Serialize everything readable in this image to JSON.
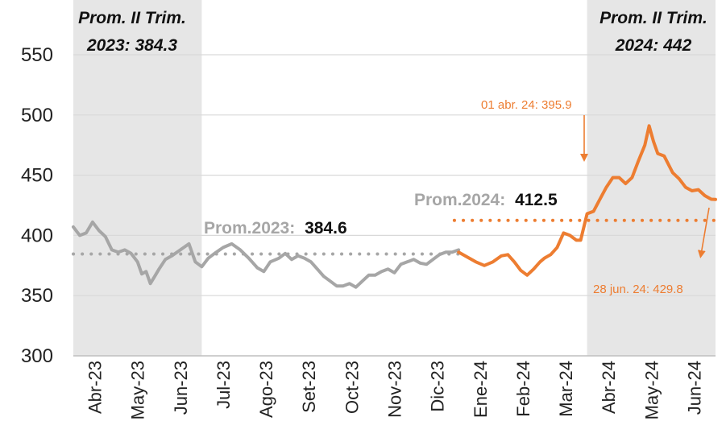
{
  "chart_data": {
    "type": "line",
    "title": "",
    "xlabel": "",
    "ylabel": "",
    "ylim": [
      300,
      550
    ],
    "yticks": [
      300,
      350,
      400,
      450,
      500,
      550
    ],
    "xticks": [
      "Abr-23",
      "May-23",
      "Jun-23",
      "Jul-23",
      "Ago-23",
      "Set-23",
      "Oct-23",
      "Nov-23",
      "Dic-23",
      "Ene-24",
      "Feb-24",
      "Mar-24",
      "Abr-24",
      "May-24",
      "Jun-24"
    ],
    "x_range": [
      0,
      15
    ],
    "grid": true,
    "colors": {
      "series_2023": "#a6a6a6",
      "series_2024": "#ed7d31",
      "shade": "#e6e6e6",
      "grid": "#d9d9d9",
      "dark_text": "#111111"
    },
    "shaded_periods": [
      {
        "from": 0,
        "to": 3,
        "line1": "Prom. II Trim.",
        "line2": "2023: 384.3"
      },
      {
        "from": 12,
        "to": 15,
        "line1": "Prom. II Trim.",
        "line2": "2024: 442"
      }
    ],
    "averages": [
      {
        "label": "Prom.2023:",
        "value_text": "384.6",
        "value": 384.6,
        "from": 0,
        "to": 9,
        "color": "#a6a6a6"
      },
      {
        "label": "Prom.2024:",
        "value_text": "412.5",
        "value": 412.5,
        "from": 8.9,
        "to": 15,
        "color": "#ed7d31"
      }
    ],
    "annotations": [
      {
        "text": "01 abr. 24: 395.9",
        "color": "#ed7d31"
      },
      {
        "text": "28 jun. 24: 429.8",
        "color": "#ed7d31"
      }
    ],
    "series": [
      {
        "name": "2023",
        "color": "#a6a6a6",
        "x": [
          0,
          0.15,
          0.3,
          0.45,
          0.6,
          0.75,
          0.9,
          1.05,
          1.2,
          1.35,
          1.5,
          1.6,
          1.7,
          1.8,
          1.9,
          2.0,
          2.15,
          2.3,
          2.5,
          2.7,
          2.85,
          3.0,
          3.15,
          3.3,
          3.5,
          3.7,
          3.9,
          4.1,
          4.3,
          4.45,
          4.6,
          4.8,
          4.95,
          5.1,
          5.25,
          5.4,
          5.55,
          5.7,
          5.85,
          6.0,
          6.15,
          6.3,
          6.45,
          6.6,
          6.75,
          6.9,
          7.05,
          7.2,
          7.35,
          7.5,
          7.65,
          7.8,
          7.95,
          8.1,
          8.25,
          8.4,
          8.55,
          8.7,
          8.85,
          9.0
        ],
        "values": [
          407,
          400,
          402,
          411,
          404,
          399,
          388,
          386,
          388,
          385,
          378,
          368,
          370,
          360,
          366,
          372,
          380,
          383,
          388,
          393,
          378,
          374,
          381,
          385,
          390,
          393,
          388,
          381,
          373,
          370,
          378,
          381,
          385,
          380,
          383,
          381,
          378,
          372,
          366,
          362,
          358,
          358,
          360,
          357,
          362,
          367,
          367,
          370,
          372,
          369,
          376,
          378,
          380,
          377,
          376,
          380,
          384,
          386,
          386,
          388
        ]
      },
      {
        "name": "2024",
        "color": "#ed7d31",
        "x": [
          9.0,
          9.2,
          9.4,
          9.6,
          9.8,
          10.0,
          10.15,
          10.3,
          10.45,
          10.6,
          10.75,
          10.9,
          11.0,
          11.15,
          11.3,
          11.45,
          11.6,
          11.75,
          11.85,
          12.0,
          12.15,
          12.3,
          12.45,
          12.6,
          12.75,
          12.9,
          13.05,
          13.2,
          13.35,
          13.45,
          13.55,
          13.65,
          13.8,
          14.0,
          14.15,
          14.3,
          14.45,
          14.6,
          14.75,
          14.9,
          15.0
        ],
        "values": [
          386,
          382,
          378,
          375,
          378,
          383,
          384,
          378,
          371,
          367,
          372,
          378,
          381,
          384,
          390,
          402,
          400,
          396,
          396,
          418,
          420,
          430,
          440,
          448,
          448,
          443,
          448,
          462,
          475,
          491,
          478,
          468,
          466,
          452,
          447,
          440,
          437,
          438,
          433,
          430,
          429.8
        ]
      }
    ]
  }
}
